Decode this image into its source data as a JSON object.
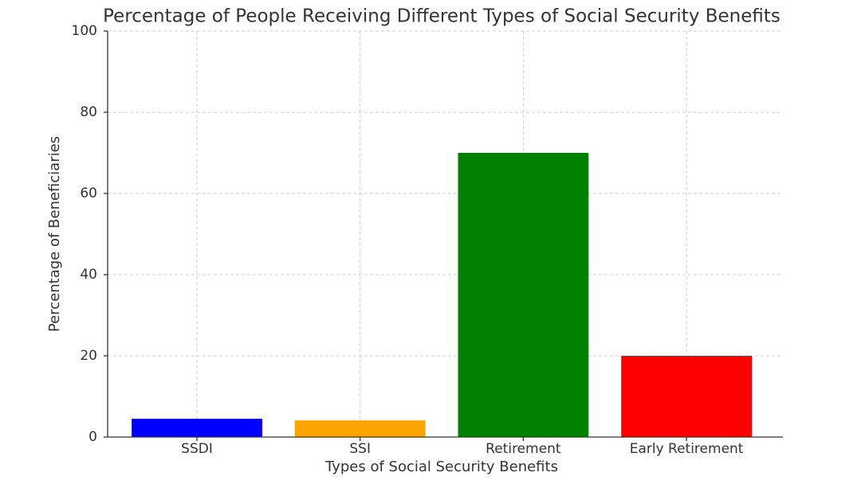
{
  "chart_data": {
    "type": "bar",
    "title": "Percentage of People Receiving Different Types of Social Security Benefits",
    "x_label": "Types of Social Security Benefits",
    "y_label": "Percentage of Beneficiaries",
    "categories": [
      "SSDI",
      "SSI",
      "Retirement",
      "Early Retirement"
    ],
    "values": [
      4.5,
      4.1,
      70,
      20
    ],
    "colors": [
      "#0000ff",
      "#ffa500",
      "#008000",
      "#ff0000"
    ],
    "ylim": [
      0,
      100
    ],
    "yticks": [
      0,
      20,
      40,
      60,
      80,
      100
    ],
    "grid": true
  }
}
